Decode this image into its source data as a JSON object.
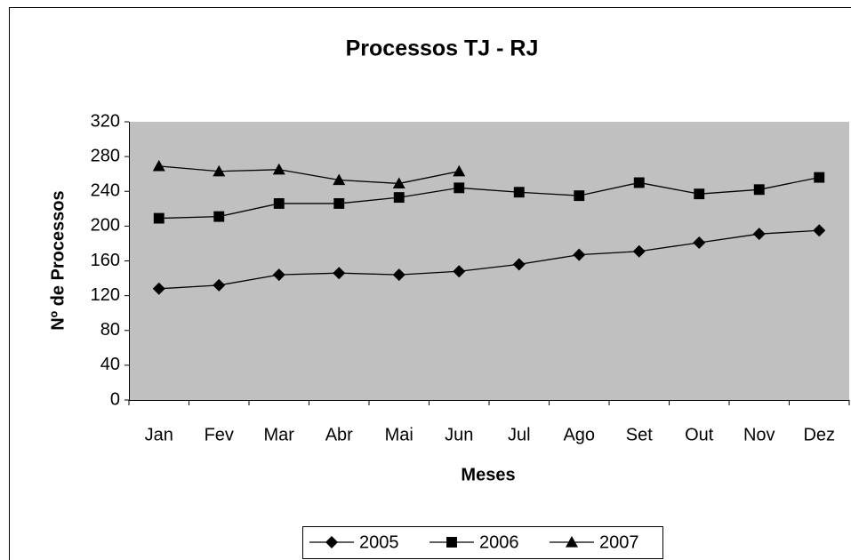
{
  "chart_data": {
    "type": "line",
    "title": "Processos TJ - RJ",
    "x_label": "Meses",
    "y_label": "Nº de Processos",
    "categories": [
      "Jan",
      "Fev",
      "Mar",
      "Abr",
      "Mai",
      "Jun",
      "Jul",
      "Ago",
      "Set",
      "Out",
      "Nov",
      "Dez"
    ],
    "series": [
      {
        "name": "2005",
        "color": "#000000",
        "marker": "diamond",
        "values": [
          128,
          132,
          144,
          146,
          144,
          148,
          156,
          167,
          171,
          181,
          191,
          195
        ]
      },
      {
        "name": "2006",
        "color": "#000000",
        "marker": "square",
        "values": [
          209,
          211,
          226,
          226,
          233,
          244,
          239,
          235,
          250,
          237,
          242,
          256
        ]
      },
      {
        "name": "2007",
        "color": "#000000",
        "marker": "triangle",
        "values": [
          269,
          263,
          265,
          253,
          249,
          263,
          null,
          null,
          null,
          null,
          null,
          null
        ]
      }
    ],
    "ylim": [
      0,
      320
    ],
    "yticks": [
      0,
      40,
      80,
      120,
      160,
      200,
      240,
      280,
      320
    ],
    "grid": false,
    "plot_background": "#c0c0c0",
    "legend": "bottom"
  }
}
